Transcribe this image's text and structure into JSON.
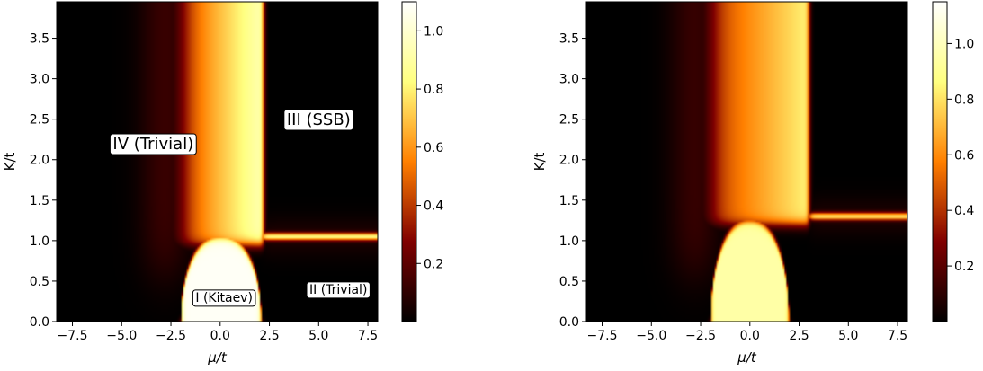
{
  "chart_data": [
    {
      "type": "heatmap",
      "title": "",
      "xlabel": "μ/t",
      "ylabel": "K/t",
      "xlim": [
        -8.3,
        8.0
      ],
      "ylim": [
        0.0,
        3.95
      ],
      "xticks": [
        -7.5,
        -5.0,
        -2.5,
        0.0,
        2.5,
        5.0,
        7.5
      ],
      "xtick_labels": [
        "−7.5",
        "−5.0",
        "−2.5",
        "0.0",
        "2.5",
        "5.0",
        "7.5"
      ],
      "yticks": [
        0.0,
        0.5,
        1.0,
        1.5,
        2.0,
        2.5,
        3.0,
        3.5
      ],
      "ytick_labels": [
        "0.0",
        "0.5",
        "1.0",
        "1.5",
        "2.0",
        "2.5",
        "3.0",
        "3.5"
      ],
      "colormap": "afmhot",
      "color_range": [
        0.0,
        1.1
      ],
      "colorbar_ticks": [
        0.2,
        0.4,
        0.6,
        0.8,
        1.0
      ],
      "colorbar_tick_labels": [
        "0.2",
        "0.4",
        "0.6",
        "0.8",
        "1.0"
      ],
      "features": {
        "kitaev_dome": {
          "mu_min": -2.0,
          "mu_max": 2.1,
          "K_top": 1.05,
          "peak_value": 1.08
        },
        "vertical_band": {
          "mu_left": -2.0,
          "mu_right": 2.2,
          "K_min": 1.0,
          "K_max": 3.95,
          "value_left": 0.45,
          "value_right": 0.95
        },
        "horizontal_line": {
          "K": 1.05,
          "mu_min": 2.1,
          "mu_max": 8.0,
          "value": 0.78
        }
      },
      "annotations": [
        {
          "text": "IV (Trivial)",
          "x": -3.4,
          "y": 2.2,
          "size": "large"
        },
        {
          "text": "III (SSB)",
          "x": 5.0,
          "y": 2.5,
          "size": "large"
        },
        {
          "text": "I (Kitaev)",
          "x": 0.2,
          "y": 0.3,
          "size": "small"
        },
        {
          "text": "II (Trivial)",
          "x": 6.0,
          "y": 0.4,
          "size": "small"
        }
      ]
    },
    {
      "type": "heatmap",
      "title": "",
      "xlabel": "μ/t",
      "ylabel": "K/t",
      "xlim": [
        -8.3,
        8.0
      ],
      "ylim": [
        0.0,
        3.95
      ],
      "xticks": [
        -7.5,
        -5.0,
        -2.5,
        0.0,
        2.5,
        5.0,
        7.5
      ],
      "xtick_labels": [
        "−7.5",
        "−5.0",
        "−2.5",
        "0.0",
        "2.5",
        "5.0",
        "7.5"
      ],
      "yticks": [
        0.0,
        0.5,
        1.0,
        1.5,
        2.0,
        2.5,
        3.0,
        3.5
      ],
      "ytick_labels": [
        "0.0",
        "0.5",
        "1.0",
        "1.5",
        "2.0",
        "2.5",
        "3.0",
        "3.5"
      ],
      "colormap": "afmhot",
      "color_range": [
        0.0,
        1.15
      ],
      "colorbar_ticks": [
        0.2,
        0.4,
        0.6,
        0.8,
        1.0
      ],
      "colorbar_tick_labels": [
        "0.2",
        "0.4",
        "0.6",
        "0.8",
        "1.0"
      ],
      "features": {
        "kitaev_dome": {
          "mu_min": -2.0,
          "mu_max": 2.0,
          "K_top": 1.25,
          "peak_value": 0.95
        },
        "vertical_band": {
          "mu_left": -2.0,
          "mu_right": 3.0,
          "K_min": 1.25,
          "K_max": 3.95,
          "value_left": 0.45,
          "value_right": 0.85
        },
        "horizontal_line": {
          "K": 1.3,
          "mu_min": 3.0,
          "mu_max": 8.0,
          "value": 0.75
        }
      },
      "annotations": []
    }
  ]
}
